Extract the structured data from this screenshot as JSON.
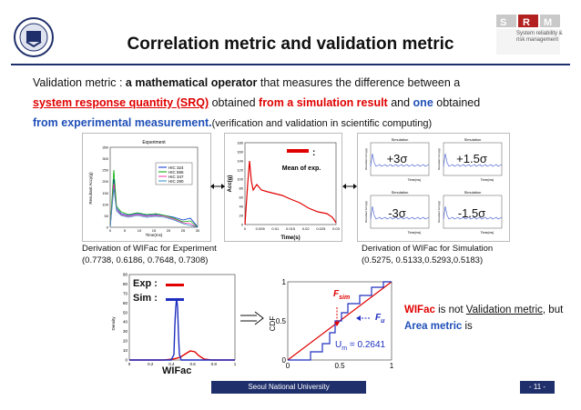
{
  "title": "Correlation metric and validation metric",
  "logos": {
    "left_label": "Seoul National University emblem",
    "right_label": "SRM",
    "right_sub": "System reliability & risk management"
  },
  "intro": {
    "line1_a": "Validation metric : ",
    "line1_b": "a mathematical operator",
    "line1_c": " that measures the difference between a",
    "line2_a": "system response quantity (SRQ)",
    "line2_b": " obtained ",
    "line2_c": "from a simulation result",
    "line2_d": " and ",
    "line2_e": "one",
    "line2_f": " obtained",
    "line3_a": "from experimental measurement.",
    "line3_b": "(verification and validation in scientific computing)"
  },
  "experiment_chart": {
    "title": "Experiment",
    "ylabel": "Resultant Accy(g)",
    "xlabel": "Time(ms)",
    "legend": [
      "HIC 324",
      "HIC 565",
      "HIC 347",
      "HIC 290"
    ],
    "yticks": [
      "0",
      "50",
      "100",
      "150",
      "200",
      "250",
      "300",
      "350"
    ],
    "xticks": [
      "0",
      "5",
      "10",
      "15",
      "20",
      "25",
      "30"
    ]
  },
  "middle_chart": {
    "ylabel": "Acc(g)",
    "xlabel": "Time(s)",
    "legend_label": "Mean of exp.",
    "yticks": [
      "0",
      "20",
      "40",
      "60",
      "80",
      "100",
      "120",
      "140",
      "160",
      "180"
    ],
    "xticks": [
      "0",
      "0.005",
      "0.01",
      "0.015",
      "0.02",
      "0.025",
      "0.03"
    ]
  },
  "sim_grid": {
    "panel_title": "Simulation",
    "ylabel": "Resultant Accy(g)",
    "xlabel": "Time(ms)",
    "labels": [
      "+3σ",
      "+1.5σ",
      "-3σ",
      "-1.5σ"
    ]
  },
  "captions": {
    "left_1": "Derivation of WIFac for Experiment",
    "left_2": "(0.7738, 0.6186, 0.7648, 0.7308)",
    "right_1": "Derivation of WIFac for Simulation",
    "right_2": "(0.5275, 0.5133,0.5293,0.5183)"
  },
  "density_chart": {
    "ylabel": "Density",
    "xlabel": "WIFac",
    "legend_exp": "Exp :",
    "legend_sim": "Sim :",
    "yticks": [
      "0",
      "10",
      "20",
      "30",
      "40",
      "50",
      "60",
      "70",
      "80",
      "90"
    ],
    "xticks": [
      "0",
      "0.2",
      "0.4",
      "0.6",
      "0.8",
      "1"
    ],
    "colors": {
      "exp": "#e00000",
      "sim": "#1f2fbf"
    }
  },
  "cdf_chart": {
    "ylabel": "CDF",
    "yticks": [
      "0",
      "0.5",
      "1"
    ],
    "xticks": [
      "0",
      "0.5",
      "1"
    ],
    "fsim_label": "F",
    "fsim_sub": "sim",
    "fu_label": "F",
    "fu_sub": "u",
    "um_label": "U",
    "um_sub": "m",
    "um_value": " = 0.2641"
  },
  "wifac_note": {
    "a": "WIFac",
    "b": " is not ",
    "c": "Validation metric",
    "d": ", but ",
    "e": "Area metric",
    "f": " is"
  },
  "footer": {
    "university": "Seoul National University",
    "page": "- 11 -"
  }
}
